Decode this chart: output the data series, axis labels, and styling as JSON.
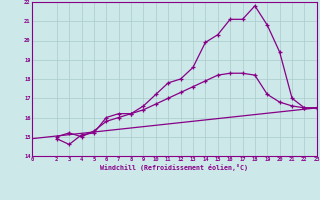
{
  "xlabel": "Windchill (Refroidissement éolien,°C)",
  "bg_color": "#cce8e8",
  "grid_color": "#aacccc",
  "line_color": "#880088",
  "xlim": [
    0,
    23
  ],
  "ylim": [
    14,
    22
  ],
  "xticks": [
    0,
    2,
    3,
    4,
    5,
    6,
    7,
    8,
    9,
    10,
    11,
    12,
    13,
    14,
    15,
    16,
    17,
    18,
    19,
    20,
    21,
    22,
    23
  ],
  "yticks": [
    14,
    15,
    16,
    17,
    18,
    19,
    20,
    21,
    22
  ],
  "series": [
    {
      "x": [
        2,
        3,
        4,
        5,
        6,
        7,
        8,
        9,
        10,
        11,
        12,
        13,
        14,
        15,
        16,
        17,
        18,
        19,
        20,
        21,
        22,
        23
      ],
      "y": [
        14.9,
        14.6,
        15.1,
        15.2,
        16.0,
        16.2,
        16.2,
        16.6,
        17.2,
        17.8,
        18.0,
        18.6,
        19.9,
        20.3,
        21.1,
        21.1,
        21.8,
        20.8,
        19.4,
        17.0,
        16.5,
        16.5
      ],
      "marker": true
    },
    {
      "x": [
        2,
        3,
        4,
        5,
        6,
        7,
        8,
        9,
        10,
        11,
        12,
        13,
        14,
        15,
        16,
        17,
        18,
        19,
        20,
        21,
        22,
        23
      ],
      "y": [
        15.0,
        15.2,
        15.0,
        15.3,
        15.8,
        16.0,
        16.2,
        16.4,
        16.7,
        17.0,
        17.3,
        17.6,
        17.9,
        18.2,
        18.3,
        18.3,
        18.2,
        17.2,
        16.8,
        16.6,
        16.5,
        16.5
      ],
      "marker": true
    },
    {
      "x": [
        0,
        23
      ],
      "y": [
        14.9,
        16.5
      ],
      "marker": false
    }
  ]
}
